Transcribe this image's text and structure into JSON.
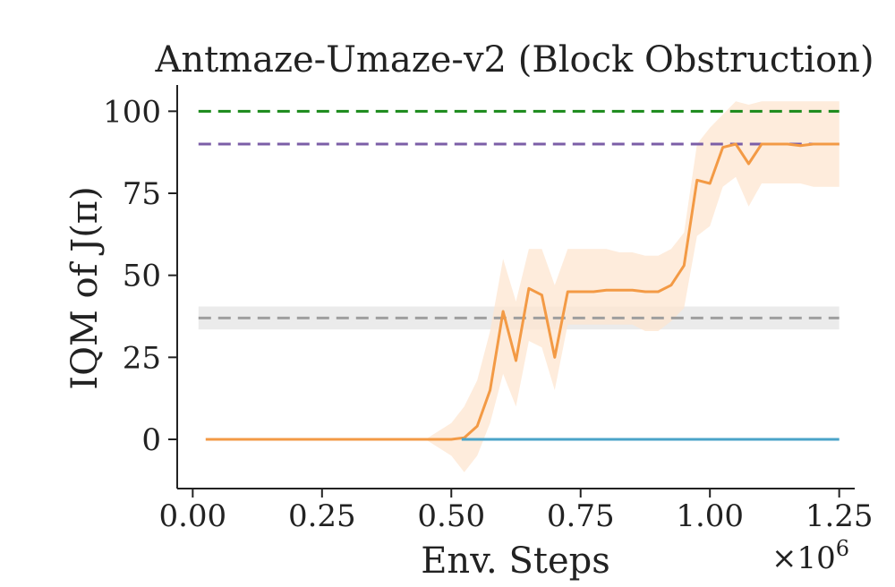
{
  "chart_data": {
    "type": "line",
    "title": "Antmaze-Umaze-v2 (Block Obstruction)",
    "xlabel": "Env. Steps",
    "ylabel": "IQM of J(π)",
    "x_multiplier": "×10",
    "x_multiplier_exp": "6",
    "xlim": [
      -0.03,
      1.28
    ],
    "ylim": [
      -15,
      108
    ],
    "xticks": [
      "0.00",
      "0.25",
      "0.50",
      "0.75",
      "1.00",
      "1.25"
    ],
    "xtick_values": [
      0.0,
      0.25,
      0.5,
      0.75,
      1.0,
      1.25
    ],
    "yticks": [
      "0",
      "25",
      "50",
      "75",
      "100"
    ],
    "ytick_values": [
      0,
      25,
      50,
      75,
      100
    ],
    "grid": false,
    "reference_lines": [
      {
        "y": 100,
        "color": "#1a8a1a",
        "style": "dashed"
      },
      {
        "y": 90,
        "color": "#7b5ea7",
        "style": "dashed"
      },
      {
        "y": 37,
        "band": [
          33.5,
          40.5
        ],
        "color": "#9e9e9e",
        "band_color": "#e6e6e6",
        "style": "dashed"
      }
    ],
    "series": [
      {
        "color": "#f39a45",
        "band_color": "#fde6d0",
        "x": [
          0.025,
          0.1,
          0.2,
          0.3,
          0.4,
          0.45,
          0.5,
          0.525,
          0.55,
          0.575,
          0.6,
          0.625,
          0.65,
          0.675,
          0.7,
          0.725,
          0.75,
          0.775,
          0.8,
          0.825,
          0.85,
          0.875,
          0.9,
          0.925,
          0.95,
          0.975,
          1.0,
          1.025,
          1.05,
          1.075,
          1.1,
          1.125,
          1.15,
          1.175,
          1.2,
          1.225,
          1.25
        ],
        "values": [
          0,
          0,
          0,
          0,
          0,
          0,
          0,
          0.5,
          4,
          15,
          39,
          24,
          46,
          44,
          25,
          45,
          45,
          45,
          45.5,
          45.5,
          45.5,
          45,
          45,
          47,
          53,
          79,
          78,
          89,
          90,
          84,
          90,
          90,
          90,
          89.5,
          90,
          90,
          90
        ],
        "lower": [
          0,
          0,
          0,
          0,
          0,
          0,
          -5,
          -10,
          -5,
          5,
          20,
          10,
          30,
          28,
          15,
          35,
          35,
          35,
          35,
          35,
          35,
          33,
          33,
          36,
          40,
          62,
          65,
          77,
          80,
          71,
          78,
          78,
          78,
          78,
          77,
          77,
          77
        ],
        "upper": [
          0,
          0,
          0,
          0,
          0,
          0,
          5,
          10,
          18,
          33,
          55,
          42,
          58,
          58,
          47,
          58,
          58,
          58,
          58,
          57,
          57,
          56,
          56,
          58,
          63,
          90,
          95,
          99,
          103,
          102,
          103,
          103,
          103,
          103,
          103,
          103,
          103
        ]
      },
      {
        "color": "#4aa3c8",
        "x": [
          0.52,
          1.25
        ],
        "values": [
          0,
          0
        ]
      }
    ]
  }
}
